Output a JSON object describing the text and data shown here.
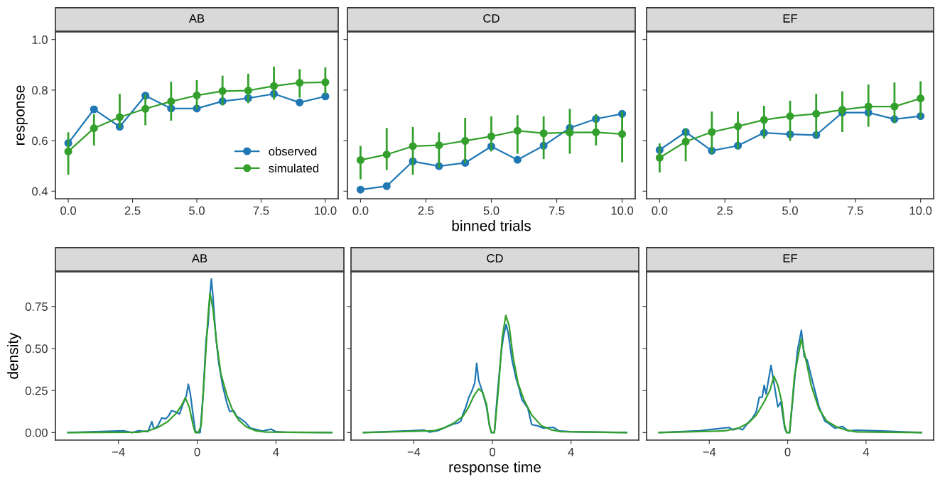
{
  "chart_data": [
    {
      "type": "line",
      "title": "AB",
      "ylabel": "response",
      "x": [
        0,
        1,
        2,
        3,
        4,
        5,
        6,
        7,
        8,
        9,
        10
      ],
      "xlim": [
        -0.5,
        10.5
      ],
      "ylim": [
        0.37,
        1.03
      ],
      "xticks": [
        {
          "value": 0,
          "label": "0.0"
        },
        {
          "value": 2.5,
          "label": "2.5"
        },
        {
          "value": 5,
          "label": "5.0"
        },
        {
          "value": 7.5,
          "label": "7.5"
        },
        {
          "value": 10,
          "label": "10.0"
        }
      ],
      "yticks": [
        {
          "value": 0.4,
          "label": "0.4"
        },
        {
          "value": 0.6,
          "label": "0.6"
        },
        {
          "value": 0.8,
          "label": "0.8"
        },
        {
          "value": 1.0,
          "label": "1.0"
        }
      ],
      "marker": "circle",
      "line_style": "solid",
      "legend": "bottom right",
      "series": [
        {
          "name": "observed",
          "color": "#1f78b4",
          "values": [
            0.59,
            0.724,
            0.655,
            0.778,
            0.727,
            0.727,
            0.756,
            0.768,
            0.785,
            0.751,
            0.775
          ]
        },
        {
          "name": "simulated",
          "color": "#33a02c",
          "values": [
            0.557,
            0.649,
            0.693,
            0.726,
            0.755,
            0.779,
            0.796,
            0.798,
            0.816,
            0.829,
            0.831
          ],
          "errors": [
            [
              0.465,
              0.633
            ],
            [
              0.581,
              0.704
            ],
            [
              0.65,
              0.785
            ],
            [
              0.661,
              0.783
            ],
            [
              0.679,
              0.833
            ],
            [
              0.725,
              0.839
            ],
            [
              0.739,
              0.857
            ],
            [
              0.748,
              0.865
            ],
            [
              0.762,
              0.893
            ],
            [
              0.77,
              0.883
            ],
            [
              0.781,
              0.89
            ]
          ]
        }
      ]
    },
    {
      "type": "line",
      "title": "CD",
      "xlabel": "binned trials",
      "x": [
        0,
        1,
        2,
        3,
        4,
        5,
        6,
        7,
        8,
        9,
        10
      ],
      "xlim": [
        -0.5,
        10.5
      ],
      "ylim": [
        0.37,
        1.03
      ],
      "xticks": [
        {
          "value": 0,
          "label": "0.0"
        },
        {
          "value": 2.5,
          "label": "2.5"
        },
        {
          "value": 5,
          "label": "5.0"
        },
        {
          "value": 7.5,
          "label": "7.5"
        },
        {
          "value": 10,
          "label": "10.0"
        }
      ],
      "yticks": [
        {
          "value": 0.4,
          "label": null
        },
        {
          "value": 0.6,
          "label": null
        },
        {
          "value": 0.8,
          "label": null
        },
        {
          "value": 1.0,
          "label": null
        }
      ],
      "tick_labels": "x",
      "marker": "circle",
      "line_style": "solid",
      "series": [
        {
          "color": "#1f78b4",
          "values": [
            0.406,
            0.42,
            0.518,
            0.499,
            0.512,
            0.577,
            0.524,
            0.58,
            0.65,
            0.686,
            0.706
          ]
        },
        {
          "color": "#33a02c",
          "values": [
            0.523,
            0.545,
            0.578,
            0.582,
            0.599,
            0.617,
            0.639,
            0.629,
            0.632,
            0.633,
            0.626
          ],
          "errors": [
            [
              0.447,
              0.579
            ],
            [
              0.484,
              0.65
            ],
            [
              0.465,
              0.654
            ],
            [
              0.492,
              0.633
            ],
            [
              0.51,
              0.69
            ],
            [
              0.557,
              0.696
            ],
            [
              0.548,
              0.701
            ],
            [
              0.527,
              0.696
            ],
            [
              0.548,
              0.726
            ],
            [
              0.581,
              0.705
            ],
            [
              0.514,
              0.716
            ]
          ]
        }
      ]
    },
    {
      "type": "line",
      "title": "EF",
      "x": [
        0,
        1,
        2,
        3,
        4,
        5,
        6,
        7,
        8,
        9,
        10
      ],
      "xlim": [
        -0.5,
        10.5
      ],
      "ylim": [
        0.37,
        1.03
      ],
      "xticks": [
        {
          "value": 0,
          "label": "0.0"
        },
        {
          "value": 2.5,
          "label": "2.5"
        },
        {
          "value": 5,
          "label": "5.0"
        },
        {
          "value": 7.5,
          "label": "7.5"
        },
        {
          "value": 10,
          "label": "10.0"
        }
      ],
      "yticks": [
        {
          "value": 0.4,
          "label": null
        },
        {
          "value": 0.6,
          "label": null
        },
        {
          "value": 0.8,
          "label": null
        },
        {
          "value": 1.0,
          "label": null
        }
      ],
      "tick_labels": "x",
      "marker": "circle",
      "line_style": "solid",
      "series": [
        {
          "color": "#1f78b4",
          "values": [
            0.563,
            0.634,
            0.56,
            0.58,
            0.631,
            0.625,
            0.622,
            0.711,
            0.711,
            0.685,
            0.697
          ]
        },
        {
          "color": "#33a02c",
          "values": [
            0.532,
            0.596,
            0.634,
            0.657,
            0.682,
            0.697,
            0.706,
            0.722,
            0.735,
            0.735,
            0.767
          ],
          "errors": [
            [
              0.474,
              0.589
            ],
            [
              0.518,
              0.65
            ],
            [
              0.548,
              0.715
            ],
            [
              0.566,
              0.715
            ],
            [
              0.608,
              0.738
            ],
            [
              0.599,
              0.758
            ],
            [
              0.613,
              0.785
            ],
            [
              0.634,
              0.795
            ],
            [
              0.655,
              0.822
            ],
            [
              0.669,
              0.83
            ],
            [
              0.688,
              0.835
            ]
          ]
        }
      ]
    },
    {
      "type": "line",
      "title": "AB",
      "ylabel": "density",
      "xlim": [
        -7.2,
        7.45
      ],
      "ylim": [
        -0.045,
        0.956
      ],
      "xticks": [
        {
          "value": -4,
          "label": "−4"
        },
        0,
        4
      ],
      "yticks": [
        {
          "value": 0,
          "label": "0.00"
        },
        {
          "value": 0.25,
          "label": "0.25"
        },
        {
          "value": 0.5,
          "label": "0.50"
        },
        {
          "value": 0.75,
          "label": "0.75"
        }
      ],
      "line_style": "solid",
      "series": [
        {
          "color": "#1f78b4",
          "x": [
            -6.56,
            -3.7,
            -3.3,
            -3.0,
            -2.5,
            -2.3,
            -2.2,
            -2.0,
            -1.8,
            -1.6,
            -1.45,
            -1.3,
            -1.15,
            -0.9,
            -0.75,
            -0.55,
            -0.45,
            -0.35,
            -0.2,
            -0.1,
            0,
            0.15,
            0.3,
            0.45,
            0.55,
            0.65,
            0.72,
            0.8,
            0.95,
            1.1,
            1.3,
            1.5,
            1.65,
            1.85,
            2.0,
            2.2,
            2.45,
            2.7,
            3.0,
            3.3,
            3.75,
            4.0,
            4.5,
            6.83
          ],
          "values": [
            0,
            0.01,
            0,
            0.01,
            0.005,
            0.065,
            0.02,
            0.04,
            0.087,
            0.082,
            0.1,
            0.13,
            0.125,
            0.11,
            0.16,
            0.22,
            0.287,
            0.23,
            0.097,
            0.01,
            0,
            0,
            0.22,
            0.55,
            0.64,
            0.82,
            0.913,
            0.81,
            0.565,
            0.41,
            0.275,
            0.18,
            0.125,
            0.13,
            0.097,
            0.082,
            0.061,
            0.026,
            0.018,
            0.009,
            0.02,
            0.005,
            0.002,
            0
          ]
        },
        {
          "color": "#33a02c",
          "x": [
            -6.56,
            -3.0,
            -2.5,
            -2.0,
            -1.5,
            -1.1,
            -0.8,
            -0.6,
            -0.4,
            -0.2,
            -0.1,
            0.05,
            0.2,
            0.4,
            0.55,
            0.65,
            0.8,
            1.0,
            1.2,
            1.5,
            1.8,
            2.1,
            2.5,
            3.0,
            3.5,
            6.83
          ],
          "values": [
            0,
            0.002,
            0.01,
            0.03,
            0.065,
            0.11,
            0.16,
            0.207,
            0.15,
            0.04,
            0,
            0,
            0.04,
            0.41,
            0.693,
            0.828,
            0.736,
            0.523,
            0.352,
            0.224,
            0.132,
            0.075,
            0.033,
            0.009,
            0.003,
            0
          ]
        }
      ]
    },
    {
      "type": "line",
      "title": "CD",
      "xlabel": "response time",
      "xlim": [
        -7.2,
        7.45
      ],
      "ylim": [
        -0.045,
        0.956
      ],
      "xticks": [
        {
          "value": -4,
          "label": "−4"
        },
        0,
        4
      ],
      "yticks": [
        {
          "value": 0,
          "label": null
        },
        {
          "value": 0.25,
          "label": null
        },
        {
          "value": 0.5,
          "label": null
        },
        {
          "value": 0.75,
          "label": null
        }
      ],
      "tick_labels": "x",
      "line_style": "solid",
      "series": [
        {
          "color": "#1f78b4",
          "x": [
            -6.56,
            -4.2,
            -3.5,
            -3.2,
            -2.8,
            -2.3,
            -2.0,
            -1.75,
            -1.6,
            -1.5,
            -1.35,
            -1.2,
            -1.05,
            -0.9,
            -0.8,
            -0.7,
            -0.5,
            -0.3,
            -0.15,
            -0.05,
            0.1,
            0.25,
            0.45,
            0.55,
            0.7,
            0.8,
            1.0,
            1.2,
            1.35,
            1.5,
            1.8,
            2.0,
            2.3,
            2.6,
            3.1,
            3.4,
            4.0,
            6.83
          ],
          "values": [
            0,
            0.01,
            0.015,
            0.003,
            0.01,
            0.035,
            0.05,
            0.057,
            0.07,
            0.11,
            0.153,
            0.21,
            0.246,
            0.295,
            0.412,
            0.31,
            0.239,
            0.153,
            0.04,
            0,
            0,
            0.224,
            0.48,
            0.565,
            0.643,
            0.594,
            0.43,
            0.324,
            0.267,
            0.196,
            0.146,
            0.047,
            0.04,
            0.026,
            0.031,
            0.009,
            0.005,
            0
          ]
        },
        {
          "color": "#33a02c",
          "x": [
            -6.56,
            -3.0,
            -2.5,
            -2.0,
            -1.5,
            -1.2,
            -0.95,
            -0.7,
            -0.5,
            -0.3,
            -0.15,
            -0.05,
            0.1,
            0.3,
            0.5,
            0.68,
            0.85,
            1.05,
            1.3,
            1.6,
            2.0,
            2.5,
            3.0,
            3.5,
            6.83
          ],
          "values": [
            0,
            0.01,
            0.026,
            0.054,
            0.097,
            0.153,
            0.217,
            0.26,
            0.239,
            0.168,
            0.04,
            0,
            0,
            0.253,
            0.565,
            0.697,
            0.636,
            0.452,
            0.295,
            0.196,
            0.104,
            0.04,
            0.016,
            0.005,
            0
          ]
        }
      ]
    },
    {
      "type": "line",
      "title": "EF",
      "xlim": [
        -7.2,
        7.45
      ],
      "ylim": [
        -0.045,
        0.956
      ],
      "xticks": [
        {
          "value": -4,
          "label": "−4"
        },
        0,
        4
      ],
      "yticks": [
        {
          "value": 0,
          "label": null
        },
        {
          "value": 0.25,
          "label": null
        },
        {
          "value": 0.5,
          "label": null
        },
        {
          "value": 0.75,
          "label": null
        }
      ],
      "tick_labels": "x",
      "line_style": "solid",
      "series": [
        {
          "color": "#1f78b4",
          "x": [
            -6.56,
            -4.5,
            -3.0,
            -2.8,
            -2.5,
            -2.3,
            -2.0,
            -1.8,
            -1.6,
            -1.45,
            -1.3,
            -1.2,
            -1.1,
            -0.85,
            -0.7,
            -0.5,
            -0.35,
            -0.15,
            -0.05,
            0.1,
            0.35,
            0.5,
            0.7,
            0.85,
            1.0,
            1.35,
            1.6,
            1.9,
            2.1,
            2.4,
            2.8,
            3.1,
            3.5,
            4.8,
            6.83
          ],
          "values": [
            0,
            0.01,
            0.03,
            0.016,
            0.026,
            0.016,
            0.061,
            0.085,
            0.125,
            0.21,
            0.21,
            0.281,
            0.23,
            0.399,
            0.295,
            0.153,
            0.182,
            0.026,
            0,
            0,
            0.31,
            0.487,
            0.608,
            0.452,
            0.43,
            0.267,
            0.153,
            0.068,
            0.054,
            0.026,
            0.036,
            0.009,
            0.014,
            0.009,
            0
          ]
        },
        {
          "color": "#33a02c",
          "x": [
            -6.56,
            -3.2,
            -2.5,
            -2.0,
            -1.6,
            -1.2,
            -0.9,
            -0.7,
            -0.5,
            -0.3,
            -0.15,
            -0.05,
            0.1,
            0.35,
            0.7,
            0.95,
            1.2,
            1.6,
            2.0,
            2.5,
            3.0,
            3.5,
            6.83
          ],
          "values": [
            0,
            0.01,
            0.026,
            0.057,
            0.104,
            0.182,
            0.253,
            0.335,
            0.281,
            0.182,
            0.04,
            0,
            0,
            0.338,
            0.558,
            0.423,
            0.281,
            0.139,
            0.068,
            0.033,
            0.014,
            0.004,
            0
          ]
        }
      ]
    }
  ]
}
